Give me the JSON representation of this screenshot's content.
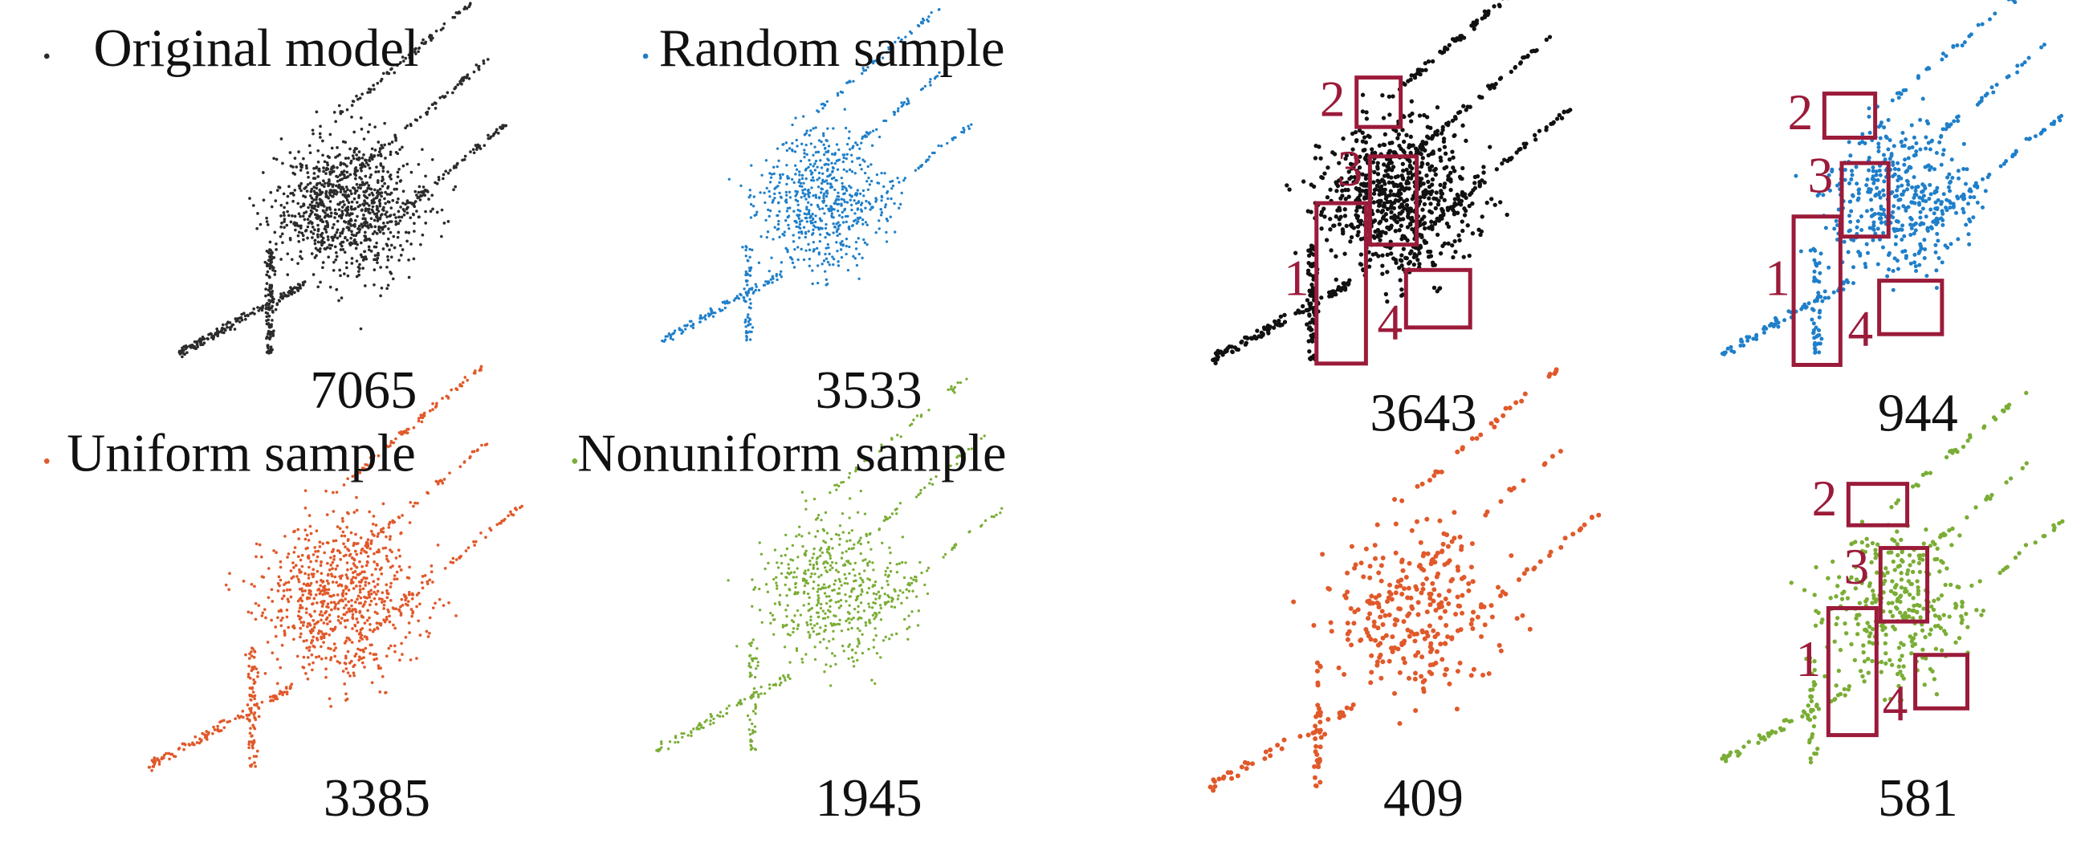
{
  "panels": [
    {
      "legend": "Original model",
      "count": 7065,
      "color": "#2b2b2b"
    },
    {
      "legend": "Random sample",
      "count": 3533,
      "color": "#1f7fc9"
    },
    {
      "count": 3643,
      "color": "#111111",
      "boxes": [
        "2",
        "3",
        "1",
        "4"
      ]
    },
    {
      "count": 944,
      "color": "#1f7fc9",
      "boxes": [
        "2",
        "3",
        "1",
        "4"
      ]
    },
    {
      "legend": "Uniform sample",
      "count": 3385,
      "color": "#e0592a"
    },
    {
      "legend": "Nonuniform sample",
      "count": 1945,
      "color": "#7aad35"
    },
    {
      "count": 409,
      "color": "#e0592a"
    },
    {
      "count": 581,
      "color": "#7aad35",
      "boxes": [
        "2",
        "3",
        "1",
        "4"
      ]
    }
  ]
}
